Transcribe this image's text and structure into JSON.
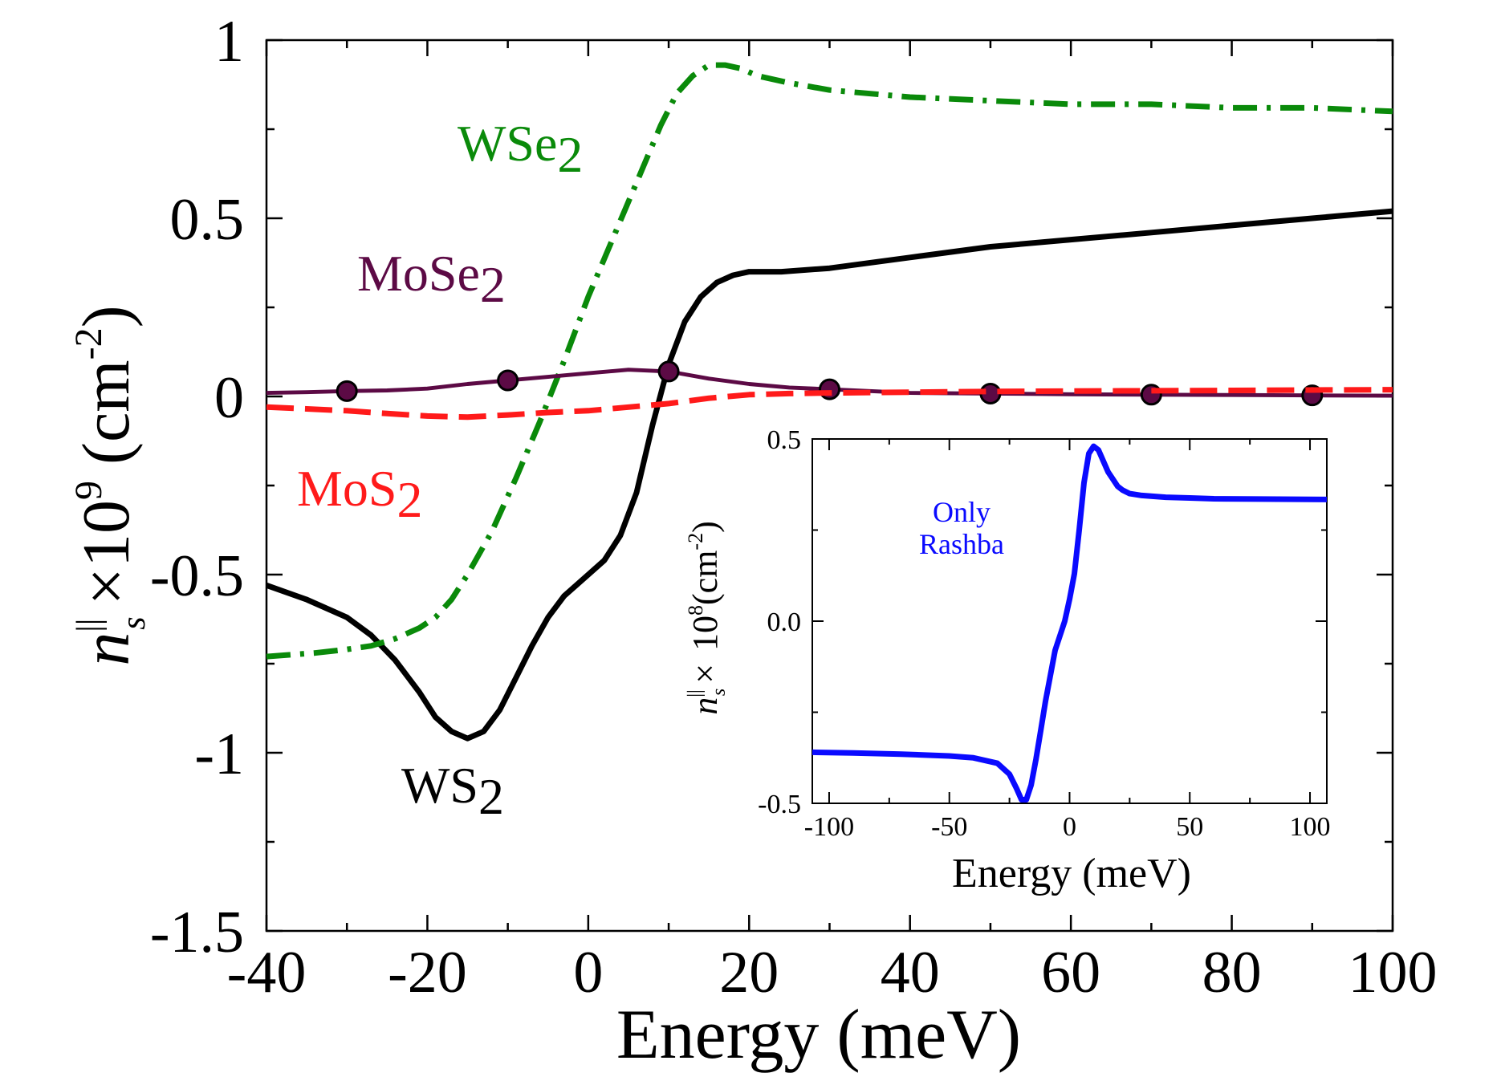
{
  "chart_data": [
    {
      "type": "line",
      "title": "",
      "xlabel": "Energy (meV)",
      "ylabel": {
        "symbol": "n",
        "superscript": "||",
        "subscript": "s",
        "times": "×",
        "scale": "10",
        "scale_exp": "9",
        "unit": "(cm",
        "unit_exp": "-2",
        "unit_close": ")"
      },
      "xlim": [
        -40,
        100
      ],
      "ylim": [
        -1.5,
        1
      ],
      "xticks": [
        -40,
        -20,
        0,
        20,
        40,
        60,
        80,
        100
      ],
      "yticks": [
        -1.5,
        -1,
        -0.5,
        0,
        0.5,
        1
      ],
      "ytick_labels": [
        "-1.5",
        "-1",
        "-0.5",
        "0",
        "0.5",
        "1"
      ],
      "series": [
        {
          "name": "WS2",
          "label": "WS",
          "label_sub": "2",
          "color": "#000000",
          "style": "solid",
          "x": [
            -40,
            -35,
            -30,
            -27,
            -24,
            -21,
            -19,
            -17,
            -15,
            -13,
            -11,
            -9,
            -7,
            -5,
            -3,
            0,
            2,
            4,
            6,
            8,
            10,
            12,
            14,
            16,
            18,
            20,
            24,
            30,
            40,
            50,
            60,
            70,
            80,
            90,
            100
          ],
          "y": [
            -0.53,
            -0.57,
            -0.62,
            -0.67,
            -0.74,
            -0.83,
            -0.9,
            -0.94,
            -0.96,
            -0.94,
            -0.88,
            -0.79,
            -0.7,
            -0.62,
            -0.56,
            -0.5,
            -0.46,
            -0.39,
            -0.27,
            -0.08,
            0.09,
            0.21,
            0.28,
            0.32,
            0.34,
            0.35,
            0.35,
            0.36,
            0.39,
            0.42,
            0.44,
            0.46,
            0.48,
            0.5,
            0.52
          ]
        },
        {
          "name": "WSe2",
          "label": "WSe",
          "label_sub": "2",
          "color": "#0a8a0a",
          "style": "dash-dot",
          "x": [
            -40,
            -34,
            -30,
            -27,
            -24,
            -21,
            -19,
            -17,
            -15,
            -12,
            -9,
            -6,
            -3,
            0,
            3,
            6,
            9,
            11,
            13,
            15,
            17,
            19,
            21,
            25,
            30,
            40,
            50,
            60,
            70,
            80,
            90,
            100
          ],
          "y": [
            -0.73,
            -0.72,
            -0.71,
            -0.7,
            -0.68,
            -0.65,
            -0.62,
            -0.57,
            -0.5,
            -0.38,
            -0.23,
            -0.07,
            0.1,
            0.28,
            0.44,
            0.6,
            0.76,
            0.85,
            0.9,
            0.93,
            0.93,
            0.92,
            0.9,
            0.88,
            0.86,
            0.84,
            0.83,
            0.82,
            0.82,
            0.81,
            0.81,
            0.8
          ]
        },
        {
          "name": "MoSe2",
          "label": "MoSe",
          "label_sub": "2",
          "color": "#5c0a45",
          "style": "solid-with-markers",
          "x": [
            -40,
            -35,
            -30,
            -25,
            -20,
            -15,
            -10,
            -5,
            0,
            5,
            10,
            15,
            20,
            25,
            30,
            40,
            50,
            60,
            70,
            80,
            90,
            100
          ],
          "y": [
            0.01,
            0.012,
            0.015,
            0.017,
            0.022,
            0.035,
            0.045,
            0.055,
            0.065,
            0.075,
            0.07,
            0.05,
            0.035,
            0.025,
            0.02,
            0.01,
            0.008,
            0.006,
            0.005,
            0.004,
            0.003,
            0.002
          ],
          "marker_x": [
            -30,
            -10,
            10,
            30,
            50,
            70,
            90
          ],
          "marker_y": [
            0.015,
            0.045,
            0.07,
            0.02,
            0.008,
            0.005,
            0.003
          ]
        },
        {
          "name": "MoS2",
          "label": "MoS",
          "label_sub": "2",
          "color": "#ff1a1a",
          "style": "dashed",
          "x": [
            -40,
            -35,
            -30,
            -25,
            -20,
            -15,
            -10,
            -5,
            0,
            5,
            10,
            15,
            20,
            25,
            30,
            40,
            50,
            60,
            70,
            80,
            90,
            100
          ],
          "y": [
            -0.03,
            -0.035,
            -0.04,
            -0.048,
            -0.055,
            -0.058,
            -0.052,
            -0.045,
            -0.04,
            -0.03,
            -0.02,
            -0.005,
            0.005,
            0.008,
            0.01,
            0.012,
            0.014,
            0.015,
            0.016,
            0.017,
            0.018,
            0.019
          ]
        }
      ]
    },
    {
      "type": "line",
      "title": "",
      "xlabel": "Energy (meV)",
      "ylabel": {
        "symbol": "n",
        "superscript": "||",
        "subscript": "s",
        "times": "×",
        "scale": "10",
        "scale_exp": "8",
        "unit": "(cm",
        "unit_exp": "-2",
        "unit_close": ")"
      },
      "annotation": [
        "Only",
        "Rashba"
      ],
      "xlim": [
        -107,
        107
      ],
      "ylim": [
        -0.5,
        0.5
      ],
      "xticks": [
        -100,
        -50,
        0,
        50,
        100
      ],
      "yticks": [
        -0.5,
        0,
        0.5
      ],
      "ytick_labels": [
        "-0.5",
        "0.0",
        "0.5"
      ],
      "series": [
        {
          "name": "Only Rashba",
          "color": "#0a0aff",
          "style": "solid",
          "x": [
            -107,
            -90,
            -70,
            -50,
            -40,
            -30,
            -25,
            -22,
            -20,
            -18,
            -16,
            -14,
            -12,
            -10,
            -8,
            -6,
            -4,
            -2,
            0,
            2,
            4,
            6,
            8,
            10,
            12,
            14,
            16,
            18,
            20,
            22,
            25,
            30,
            40,
            50,
            60,
            80,
            107
          ],
          "y": [
            -0.36,
            -0.362,
            -0.365,
            -0.37,
            -0.375,
            -0.39,
            -0.42,
            -0.46,
            -0.49,
            -0.49,
            -0.45,
            -0.38,
            -0.3,
            -0.22,
            -0.15,
            -0.08,
            -0.04,
            0.0,
            0.06,
            0.13,
            0.25,
            0.38,
            0.46,
            0.48,
            0.47,
            0.44,
            0.41,
            0.39,
            0.37,
            0.36,
            0.35,
            0.345,
            0.34,
            0.338,
            0.336,
            0.335,
            0.334
          ]
        }
      ]
    }
  ]
}
